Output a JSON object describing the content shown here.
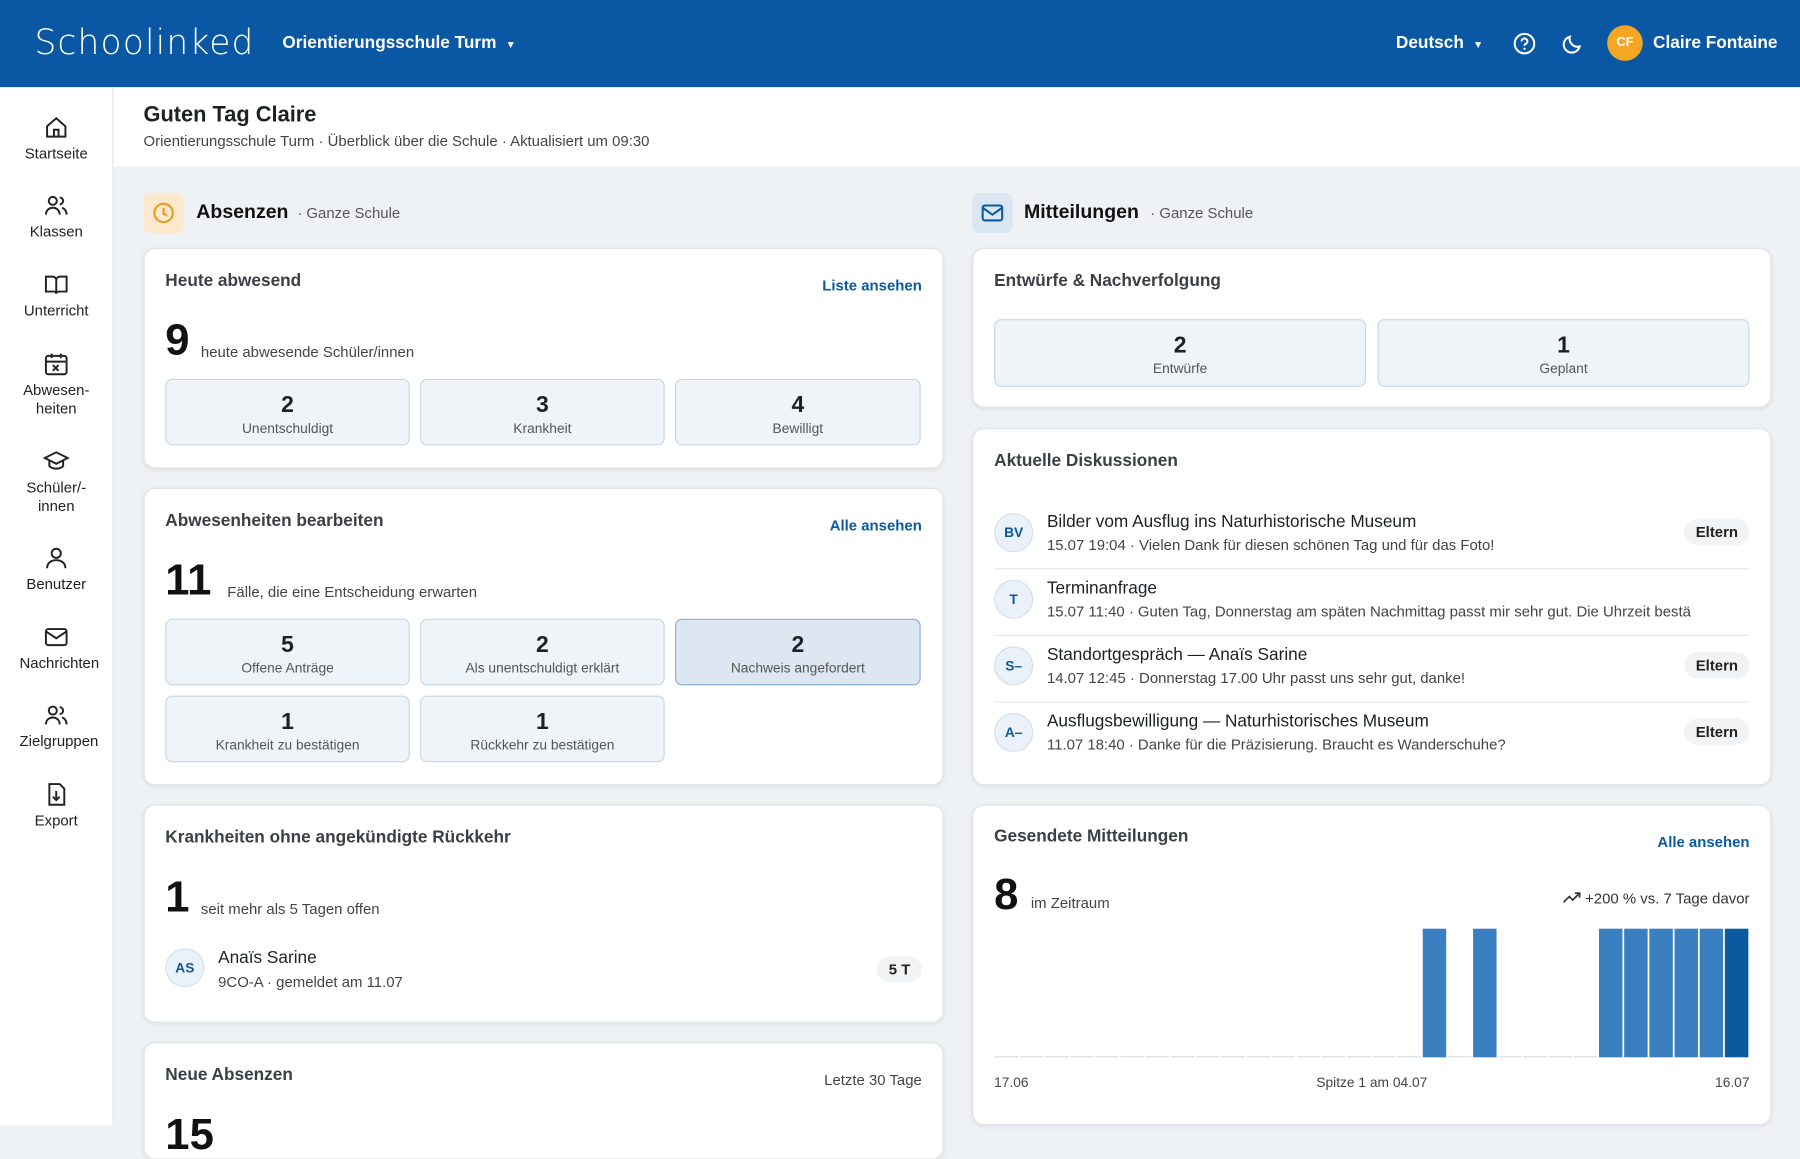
{
  "header": {
    "logo": "Schoolinked",
    "school": "Orientierungsschule Turm",
    "language": "Deutsch",
    "initials": "CF",
    "user": "Claire Fontaine"
  },
  "nav": [
    "Startseite",
    "Klassen",
    "Unterricht",
    "Abwesen-heiten",
    "Schüler/-innen",
    "Benutzer",
    "Nachrichten",
    "Zielgruppen",
    "Export"
  ],
  "greeting": {
    "title": "Guten Tag Claire",
    "subtitle": "Orientierungsschule Turm · Überblick über die Schule · Aktualisiert um 09:30"
  },
  "absences": {
    "title": "Absenzen",
    "scope": "· Ganze Schule",
    "today": {
      "title": "Heute abwesend",
      "link": "Liste ansehen",
      "count": 9,
      "caption": "heute abwesende Schüler/innen",
      "tiles": [
        {
          "value": 2,
          "label": "Unentschuldigt"
        },
        {
          "value": 3,
          "label": "Krankheit"
        },
        {
          "value": 4,
          "label": "Bewilligt"
        }
      ]
    },
    "pending": {
      "title": "Abwesenheiten bearbeiten",
      "link": "Alle ansehen",
      "count": 11,
      "caption": "Fälle, die eine Entscheidung erwarten",
      "tiles": [
        {
          "value": 5,
          "label": "Offene Anträge"
        },
        {
          "value": 2,
          "label": "Als unentschuldigt erklärt"
        },
        {
          "value": 2,
          "label": "Nachweis angefordert"
        },
        {
          "value": 1,
          "label": "Krankheit zu bestätigen"
        },
        {
          "value": 1,
          "label": "Rückkehr zu bestätigen"
        }
      ]
    },
    "sick": {
      "title": "Krankheiten ohne angekündigte Rückkehr",
      "count": 1,
      "caption": "seit mehr als 5 Tagen offen",
      "student": {
        "initials": "AS",
        "name": "Anaïs Sarine",
        "meta": "9CO-A · gemeldet am 11.07",
        "badge": "5 T"
      }
    },
    "new": {
      "title": "Neue Absenzen",
      "period": "Letzte 30 Tage",
      "count": 15
    }
  },
  "messages": {
    "title": "Mitteilungen",
    "scope": "· Ganze Schule",
    "drafts": {
      "title": "Entwürfe & Nachverfolgung",
      "tiles": [
        {
          "value": 2,
          "label": "Entwürfe"
        },
        {
          "value": 1,
          "label": "Geplant"
        }
      ]
    },
    "discussions": {
      "title": "Aktuelle Diskussionen",
      "items": [
        {
          "initials": "BV",
          "title": "Bilder vom Ausflug ins Naturhistorische Museum",
          "meta": "15.07 19:04 · Vielen Dank für diesen schönen Tag und für das Foto!",
          "tag": "Eltern"
        },
        {
          "initials": "T",
          "title": "Terminanfrage",
          "meta": "15.07 11:40 · Guten Tag, Donnerstag am späten Nachmittag passt mir sehr gut. Die Uhrzeit bestä"
        },
        {
          "initials": "S–",
          "title": "Standortgespräch — Anaïs Sarine",
          "meta": "14.07 12:45 · Donnerstag 17.00 Uhr passt uns sehr gut, danke!",
          "tag": "Eltern"
        },
        {
          "initials": "A–",
          "title": "Ausflugsbewilligung — Naturhistorisches Museum",
          "meta": "11.07 18:40 · Danke für die Präzisierung. Braucht es Wanderschuhe?",
          "tag": "Eltern"
        }
      ]
    },
    "sent": {
      "title": "Gesendete Mitteilungen",
      "link": "Alle ansehen",
      "count": 8,
      "caption": "im Zeitraum",
      "trend": "+200 % vs. 7 Tage davor",
      "peak": "Spitze 1 am 04.07"
    }
  },
  "chart_data": {
    "type": "bar",
    "categories": [
      "17.06",
      null,
      null,
      null,
      null,
      null,
      null,
      null,
      null,
      null,
      null,
      null,
      null,
      null,
      null,
      null,
      null,
      null,
      null,
      null,
      null,
      null,
      null,
      null,
      null,
      null,
      null,
      null,
      null,
      "16.07"
    ],
    "values": [
      0,
      0,
      0,
      0,
      0,
      0,
      0,
      0,
      0,
      0,
      0,
      0,
      0,
      0,
      0,
      0,
      0,
      1,
      0,
      1,
      0,
      0,
      0,
      0,
      1,
      1,
      1,
      1,
      1,
      1
    ],
    "color": "#3a80c1",
    "latest_color": "#0b5aa0",
    "ylim": [
      0,
      1
    ]
  }
}
